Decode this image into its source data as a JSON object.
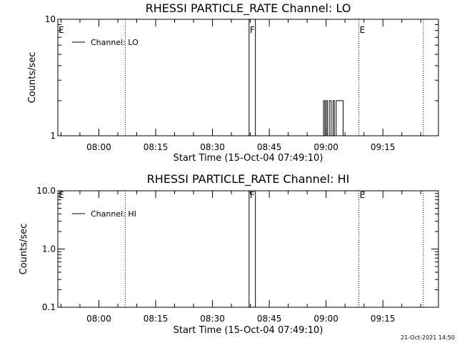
{
  "chart_data": [
    {
      "type": "line",
      "title": "RHESSI PARTICLE_RATE Channel: LO",
      "xlabel": "Start Time (15-Oct-04 07:49:10)",
      "ylabel": "Counts/sec",
      "y_scale": "log",
      "ylim": [
        1,
        10
      ],
      "y_ticks": [
        "1",
        "10"
      ],
      "xlim": [
        "07:49:10",
        "09:29:40"
      ],
      "x_ticks": [
        "08:00",
        "08:15",
        "08:30",
        "08:45",
        "09:00",
        "09:15"
      ],
      "legend": {
        "label": "Channel: LO",
        "position": "top-left"
      },
      "grid": false,
      "markers": [
        {
          "label": "E",
          "time": "07:49:10",
          "style": "dotted"
        },
        {
          "label": "",
          "time": "08:07:00",
          "style": "dotted"
        },
        {
          "label": "F",
          "time": "08:39:40",
          "style": "solid"
        },
        {
          "label": "",
          "time": "08:41:20",
          "style": "solid"
        },
        {
          "label": "E",
          "time": "09:08:40",
          "style": "dotted"
        },
        {
          "label": "",
          "time": "09:25:40",
          "style": "dotted"
        }
      ],
      "series": [
        {
          "name": "Channel: LO",
          "points": [
            [
              "08:59:20",
              1
            ],
            [
              "08:59:20",
              2
            ],
            [
              "08:59:40",
              2
            ],
            [
              "08:59:40",
              1
            ],
            [
              "09:00:00",
              1
            ],
            [
              "09:00:00",
              2
            ],
            [
              "09:00:20",
              2
            ],
            [
              "09:00:20",
              1
            ],
            [
              "09:00:50",
              1
            ],
            [
              "09:00:50",
              2
            ],
            [
              "09:01:20",
              2
            ],
            [
              "09:01:20",
              1
            ],
            [
              "09:01:50",
              1
            ],
            [
              "09:01:50",
              2
            ],
            [
              "09:02:10",
              2
            ],
            [
              "09:02:10",
              1
            ],
            [
              "09:02:40",
              1
            ],
            [
              "09:02:40",
              2
            ],
            [
              "09:04:30",
              2
            ],
            [
              "09:04:30",
              1
            ]
          ]
        }
      ]
    },
    {
      "type": "line",
      "title": "RHESSI PARTICLE_RATE Channel: HI",
      "xlabel": "Start Time (15-Oct-04 07:49:10)",
      "ylabel": "Counts/sec",
      "y_scale": "log",
      "ylim": [
        0.1,
        10
      ],
      "y_ticks": [
        "0.1",
        "1.0",
        "10.0"
      ],
      "xlim": [
        "07:49:10",
        "09:29:40"
      ],
      "x_ticks": [
        "08:00",
        "08:15",
        "08:30",
        "08:45",
        "09:00",
        "09:15"
      ],
      "legend": {
        "label": "Channel: HI",
        "position": "top-left"
      },
      "grid": false,
      "markers": [
        {
          "label": "E",
          "time": "07:49:10",
          "style": "dotted"
        },
        {
          "label": "",
          "time": "08:07:00",
          "style": "dotted"
        },
        {
          "label": "F",
          "time": "08:39:40",
          "style": "solid"
        },
        {
          "label": "",
          "time": "08:41:20",
          "style": "solid"
        },
        {
          "label": "E",
          "time": "09:08:40",
          "style": "dotted"
        },
        {
          "label": "",
          "time": "09:25:40",
          "style": "dotted"
        }
      ],
      "series": [
        {
          "name": "Channel: HI",
          "points": []
        }
      ]
    }
  ],
  "footer": {
    "timestamp": "21-Oct-2021 14:50"
  }
}
